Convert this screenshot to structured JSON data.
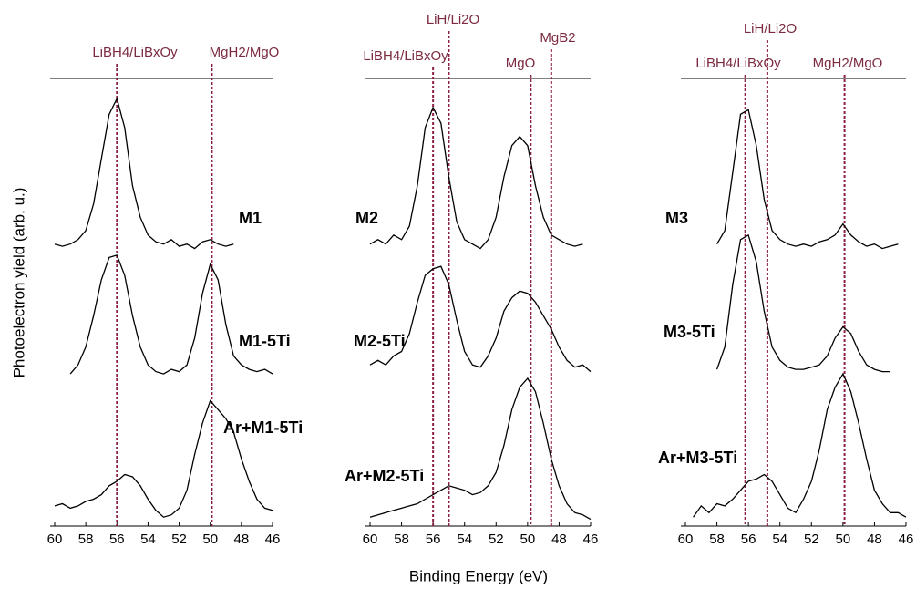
{
  "chart_data": [
    {
      "type": "line",
      "ylabel": "Photoelectron yield (arb. u.)",
      "xlim": [
        60,
        46
      ],
      "xticks": [
        60,
        58,
        56,
        54,
        52,
        50,
        48,
        46
      ],
      "ylim": [
        0,
        10
      ],
      "x": [
        60,
        59.5,
        59,
        58.5,
        58,
        57.5,
        57,
        56.5,
        56,
        55.5,
        55,
        54.5,
        54,
        53.5,
        53,
        52.5,
        52,
        51.5,
        51,
        50.5,
        50,
        49.5,
        49,
        48.5,
        48,
        47.5,
        47,
        46.5,
        46
      ],
      "vlines": [
        {
          "x": 56,
          "label": "LiBH4/LiBxOy"
        },
        {
          "x": 49.9,
          "label": "MgH2/MgO"
        }
      ],
      "vline_color": "#8b2040",
      "series": [
        {
          "name": "M1",
          "color": "#000000",
          "values": [
            6.3,
            6.25,
            6.3,
            6.4,
            6.6,
            7.2,
            8.2,
            9.2,
            9.55,
            8.9,
            7.6,
            6.9,
            6.5,
            6.35,
            6.3,
            6.4,
            6.25,
            6.3,
            6.2,
            6.35,
            6.4,
            6.3,
            6.25,
            6.3,
            null,
            null,
            null,
            null,
            null
          ]
        },
        {
          "name": "M1-5Ti",
          "color": "#000000",
          "values": [
            null,
            null,
            3.4,
            3.6,
            4.0,
            4.7,
            5.5,
            6.0,
            6.05,
            5.6,
            4.7,
            4.0,
            3.6,
            3.45,
            3.4,
            3.5,
            3.45,
            3.6,
            4.2,
            5.2,
            5.85,
            5.5,
            4.5,
            3.8,
            3.6,
            3.5,
            3.45,
            3.5,
            3.4
          ]
        },
        {
          "name": "Ar+M1-5Ti",
          "color": "#000000",
          "values": [
            0.45,
            0.5,
            0.4,
            0.45,
            0.55,
            0.6,
            0.7,
            0.9,
            1.0,
            1.15,
            1.1,
            0.9,
            0.6,
            0.35,
            0.2,
            0.25,
            0.4,
            0.8,
            1.6,
            2.3,
            2.8,
            2.6,
            2.4,
            2.1,
            1.5,
            1.0,
            0.6,
            0.4,
            0.35
          ]
        }
      ]
    },
    {
      "type": "line",
      "xlabel": "Binding Energy (eV)",
      "xlim": [
        60,
        46
      ],
      "xticks": [
        60,
        58,
        56,
        54,
        52,
        50,
        48,
        46
      ],
      "ylim": [
        0,
        10
      ],
      "x": [
        60,
        59.5,
        59,
        58.5,
        58,
        57.5,
        57,
        56.5,
        56,
        55.5,
        55,
        54.5,
        54,
        53.5,
        53,
        52.5,
        52,
        51.5,
        51,
        50.5,
        50,
        49.5,
        49,
        48.5,
        48,
        47.5,
        47,
        46.5,
        46
      ],
      "vlines": [
        {
          "x": 56,
          "label": "LiBH4/LiBxOy"
        },
        {
          "x": 55,
          "label": "LiH/Li2O"
        },
        {
          "x": 49.8,
          "label": "MgO"
        },
        {
          "x": 48.5,
          "label": "MgB2"
        }
      ],
      "vline_color": "#8b2040",
      "series": [
        {
          "name": "M2",
          "color": "#000000",
          "values": [
            6.3,
            6.4,
            6.3,
            6.5,
            6.4,
            6.7,
            7.6,
            8.9,
            9.35,
            9.0,
            7.8,
            6.8,
            6.4,
            6.3,
            6.2,
            6.4,
            6.9,
            7.8,
            8.5,
            8.7,
            8.5,
            7.6,
            6.9,
            6.5,
            6.4,
            6.3,
            6.25,
            6.3,
            null
          ]
        },
        {
          "name": "M2-5Ti",
          "color": "#000000",
          "values": [
            3.6,
            3.7,
            3.6,
            3.8,
            3.9,
            4.3,
            5.0,
            5.6,
            5.75,
            5.8,
            5.4,
            4.6,
            3.9,
            3.6,
            3.55,
            3.8,
            4.2,
            4.8,
            5.1,
            5.25,
            5.2,
            5.0,
            4.7,
            4.4,
            4.0,
            3.7,
            3.55,
            3.6,
            3.45
          ]
        },
        {
          "name": "Ar+M2-5Ti",
          "color": "#000000",
          "values": [
            0.2,
            0.25,
            0.3,
            0.35,
            0.4,
            0.45,
            0.5,
            0.6,
            0.7,
            0.8,
            0.9,
            0.85,
            0.8,
            0.7,
            0.75,
            0.9,
            1.2,
            1.8,
            2.6,
            3.1,
            3.3,
            3.0,
            2.3,
            1.5,
            0.9,
            0.5,
            0.3,
            0.25,
            0.15
          ]
        }
      ]
    },
    {
      "type": "line",
      "xlim": [
        60,
        46
      ],
      "xticks": [
        60,
        58,
        56,
        54,
        52,
        50,
        48,
        46
      ],
      "ylim": [
        0,
        10
      ],
      "x": [
        60,
        59.5,
        59,
        58.5,
        58,
        57.5,
        57,
        56.5,
        56,
        55.5,
        55,
        54.5,
        54,
        53.5,
        53,
        52.5,
        52,
        51.5,
        51,
        50.5,
        50,
        49.5,
        49,
        48.5,
        48,
        47.5,
        47,
        46.5,
        46
      ],
      "vlines": [
        {
          "x": 56.2,
          "label": "LiBH4/LiBxOy"
        },
        {
          "x": 54.8,
          "label": "LiH/Li2O"
        },
        {
          "x": 49.9,
          "label": "MgH2/MgO"
        }
      ],
      "vline_color": "#8b2040",
      "series": [
        {
          "name": "M3",
          "color": "#000000",
          "values": [
            null,
            null,
            null,
            null,
            6.3,
            6.6,
            7.9,
            9.2,
            9.3,
            8.5,
            7.3,
            6.6,
            6.4,
            6.3,
            6.25,
            6.3,
            6.25,
            6.35,
            6.4,
            6.5,
            6.75,
            6.5,
            6.35,
            6.25,
            6.3,
            6.2,
            6.25,
            6.3,
            null
          ]
        },
        {
          "name": "M3-5Ti",
          "color": "#000000",
          "values": [
            null,
            null,
            null,
            null,
            3.5,
            4.0,
            5.4,
            6.4,
            6.5,
            5.9,
            4.8,
            4.0,
            3.7,
            3.55,
            3.5,
            3.5,
            3.55,
            3.6,
            3.8,
            4.2,
            4.45,
            4.3,
            3.9,
            3.6,
            3.5,
            3.45,
            3.45,
            null,
            null
          ]
        },
        {
          "name": "Ar+M3-5Ti",
          "color": "#000000",
          "values": [
            null,
            0.2,
            0.45,
            0.3,
            0.5,
            0.45,
            0.6,
            0.8,
            1.0,
            1.05,
            1.15,
            1.0,
            0.7,
            0.4,
            0.3,
            0.6,
            1.0,
            1.7,
            2.6,
            3.1,
            3.4,
            3.0,
            2.3,
            1.5,
            0.8,
            0.5,
            0.3,
            0.3,
            0.2
          ]
        }
      ]
    }
  ]
}
